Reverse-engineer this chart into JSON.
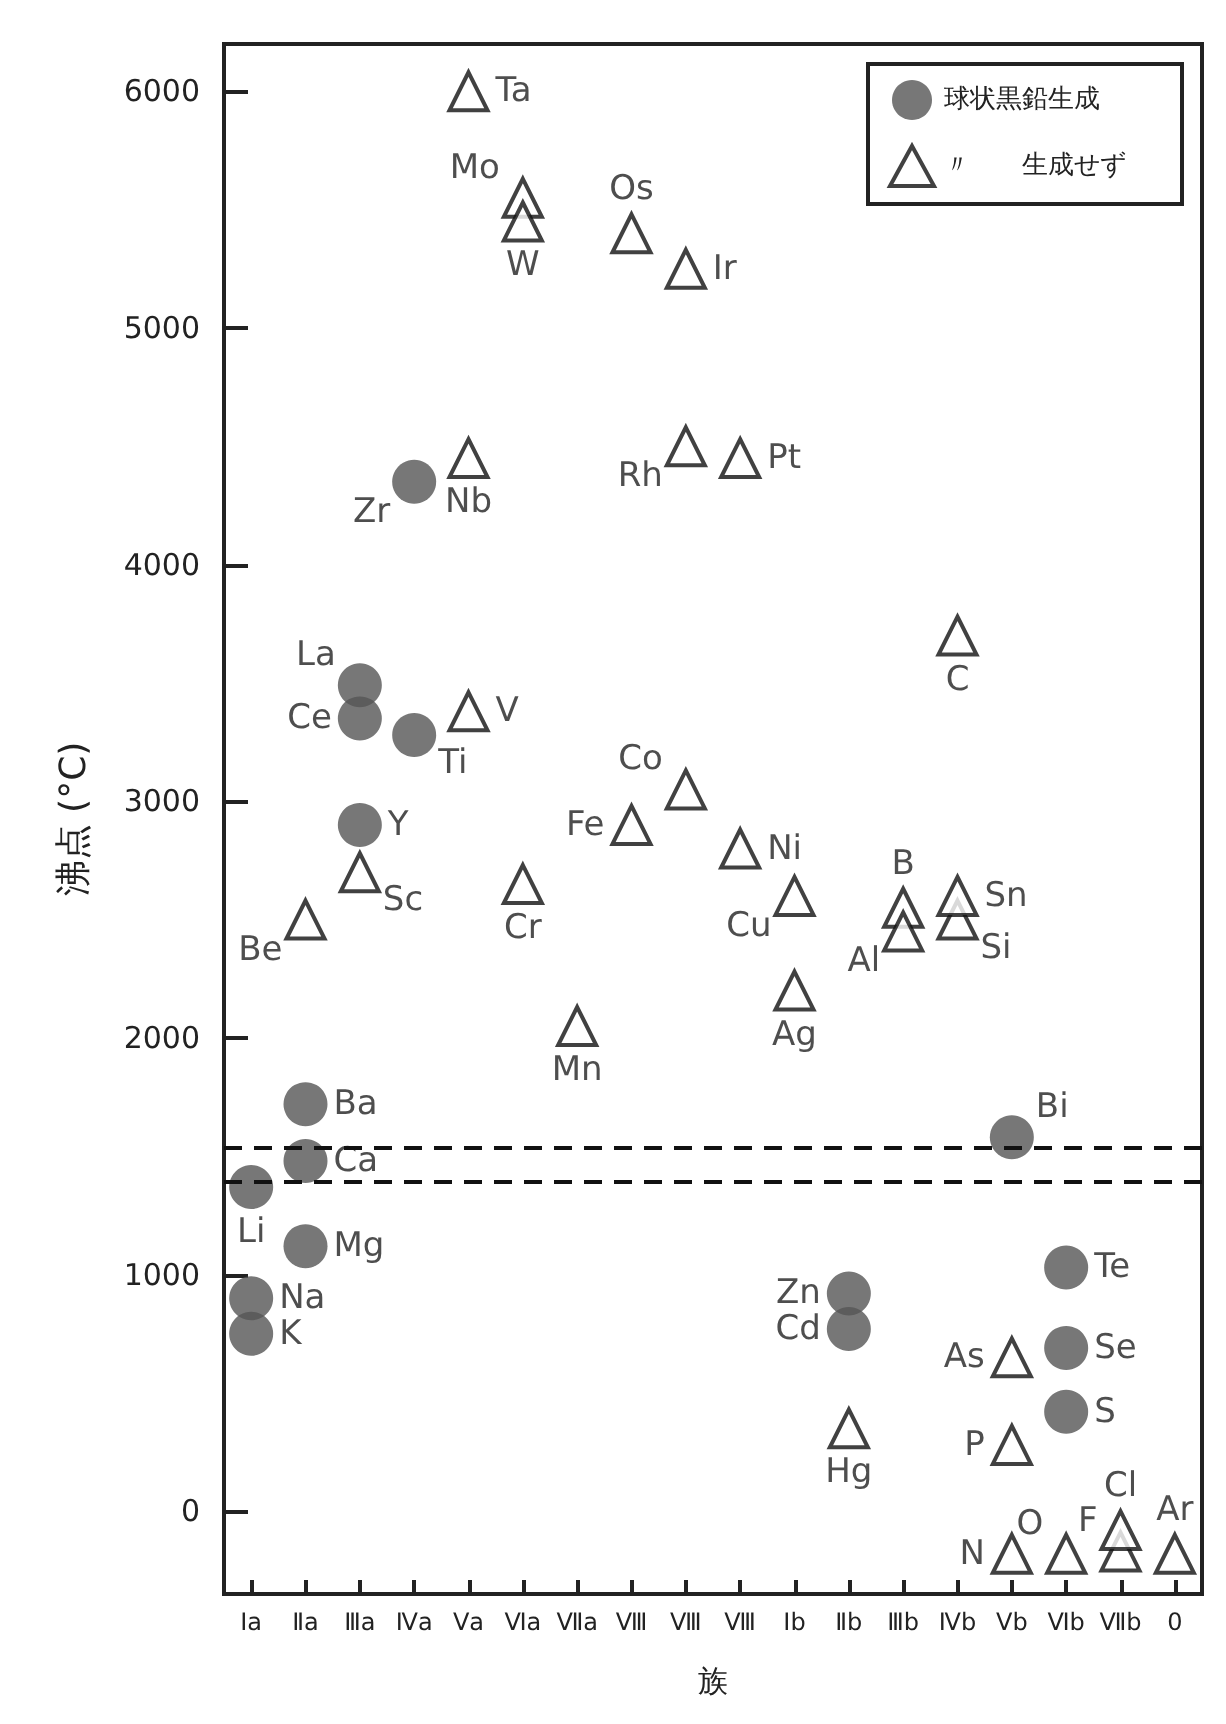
{
  "chart_data": {
    "type": "scatter",
    "ylabel": "沸点 (°C)",
    "xlabel": "族",
    "categories": [
      "Ⅰa",
      "Ⅱa",
      "Ⅲa",
      "Ⅳa",
      "Ⅴa",
      "Ⅵa",
      "Ⅶa",
      "Ⅷ",
      "Ⅷ",
      "Ⅷ",
      "Ⅰb",
      "Ⅱb",
      "Ⅲb",
      "Ⅳb",
      "Ⅴb",
      "Ⅵb",
      "Ⅶb",
      "0"
    ],
    "ylim": [
      -350,
      6200
    ],
    "yticks": [
      0,
      1000,
      2000,
      3000,
      4000,
      5000,
      6000
    ],
    "grid": false,
    "legend": "top right",
    "series": [
      {
        "name": "球状黒鉛生成",
        "color": "#555555",
        "marker": "circle",
        "values": [
          1370,
          1120,
          2900,
          3280,
          null,
          null,
          null,
          null,
          null,
          null,
          null,
          920,
          null,
          null,
          1580,
          1030,
          null,
          null
        ],
        "value_labels": [
          "Li",
          "Mg",
          "Y",
          "Ti",
          null,
          null,
          null,
          null,
          null,
          null,
          null,
          "Zn",
          null,
          null,
          "Bi",
          "Te",
          null,
          null
        ]
      },
      {
        "color": "#555555",
        "marker": "circle",
        "values": [
          900,
          1480,
          3490,
          4350,
          null,
          null,
          null,
          null,
          null,
          null,
          null,
          770,
          null,
          null,
          null,
          690,
          null,
          null
        ],
        "value_labels": [
          "Na",
          "Ca",
          "La",
          "Zr",
          null,
          null,
          null,
          null,
          null,
          null,
          null,
          "Cd",
          null,
          null,
          null,
          "Se",
          null,
          null
        ]
      },
      {
        "color": "#555555",
        "marker": "circle",
        "values": [
          750,
          1720,
          3350,
          null,
          null,
          null,
          null,
          null,
          null,
          null,
          null,
          null,
          null,
          null,
          null,
          420,
          null,
          null
        ],
        "value_labels": [
          "K",
          "Ba",
          "Ce",
          null,
          null,
          null,
          null,
          null,
          null,
          null,
          null,
          null,
          null,
          null,
          null,
          "S",
          null,
          null
        ]
      },
      {
        "name": "〃　　生成せず",
        "color": "#111111",
        "marker": "triangle",
        "values": [
          null,
          2500,
          2700,
          null,
          3380,
          2650,
          2050,
          2900,
          3050,
          2800,
          2600,
          350,
          2550,
          3700,
          650,
          -180,
          -170,
          -180
        ],
        "value_labels": [
          null,
          "Be",
          "Sc",
          null,
          "V",
          "Cr",
          "Mn",
          "Fe",
          "Co",
          "Ni",
          "Cu",
          "Hg",
          "B",
          "C",
          "As",
          "O",
          "F",
          "Ar"
        ]
      },
      {
        "color": "#111111",
        "marker": "triangle",
        "values": [
          null,
          null,
          null,
          null,
          4450,
          5550,
          null,
          5400,
          4500,
          4450,
          2200,
          null,
          2450,
          2500,
          280,
          null,
          -80,
          null
        ],
        "value_labels": [
          null,
          null,
          null,
          null,
          "Nb",
          "Mo",
          null,
          "Os",
          "Rh",
          "Pt",
          "Ag",
          null,
          "Al",
          "Si",
          "P",
          null,
          "Cl",
          null
        ]
      },
      {
        "color": "#111111",
        "marker": "triangle",
        "values": [
          null,
          null,
          null,
          null,
          6000,
          5450,
          null,
          null,
          5250,
          null,
          null,
          null,
          null,
          2600,
          -180,
          null,
          null,
          null
        ],
        "value_labels": [
          null,
          null,
          null,
          null,
          "Ta",
          "W",
          null,
          null,
          "Ir",
          null,
          null,
          null,
          null,
          "Sn",
          "N",
          null,
          null,
          null
        ]
      }
    ],
    "ref_lines": [
      {
        "axis": "y",
        "value": 1540,
        "color": "#111111",
        "line_style": "dashed"
      },
      {
        "axis": "y",
        "value": 1390,
        "color": "#111111",
        "line_style": "dashed"
      }
    ]
  }
}
